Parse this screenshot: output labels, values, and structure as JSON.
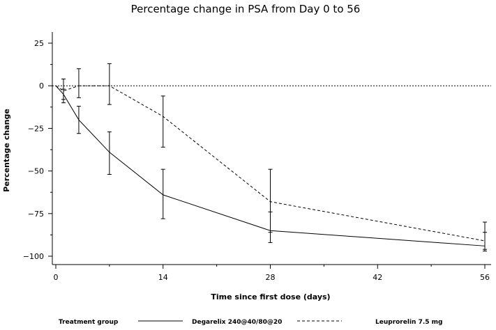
{
  "chart_data": {
    "type": "line",
    "title": "Percentage change in PSA from Day 0 to 56",
    "xlabel": "Time since first dose (days)",
    "ylabel": "Percentage change",
    "xlim": [
      0,
      56
    ],
    "ylim": [
      -100,
      25
    ],
    "x_ticks": [
      0,
      14,
      28,
      42,
      56
    ],
    "y_ticks": [
      25,
      0,
      -25,
      -50,
      -75,
      -100
    ],
    "x_tick_labels": [
      "0",
      "14",
      "28",
      "42",
      "56"
    ],
    "y_tick_labels": [
      "25",
      "0",
      "−25",
      "−50",
      "−75",
      "−100"
    ],
    "reference_line": {
      "y": 0,
      "style": "dotted"
    },
    "grid": false,
    "legend": {
      "title": "Treatment group",
      "position": "bottom"
    },
    "series": [
      {
        "name": "Degarelix 240@40/80@20",
        "line_style": "solid",
        "x": [
          0,
          1,
          3,
          7,
          14,
          28,
          56
        ],
        "y": [
          0,
          -5,
          -20,
          -39,
          -64,
          -85,
          -94
        ],
        "lower": [
          0,
          -8,
          -28,
          -52,
          -78,
          -92,
          -97
        ],
        "upper": [
          0,
          -2,
          -12,
          -27,
          -49,
          -74,
          -86
        ]
      },
      {
        "name": "Leuprorelin 7.5 mg",
        "line_style": "dashed",
        "x": [
          0,
          1,
          3,
          7,
          14,
          28,
          56
        ],
        "y": [
          0,
          -3,
          0,
          0,
          -18,
          -68,
          -91
        ],
        "lower": [
          0,
          -10,
          -7,
          -11,
          -36,
          -86,
          -96
        ],
        "upper": [
          0,
          4,
          10,
          13,
          -6,
          -49,
          -80
        ]
      }
    ]
  }
}
